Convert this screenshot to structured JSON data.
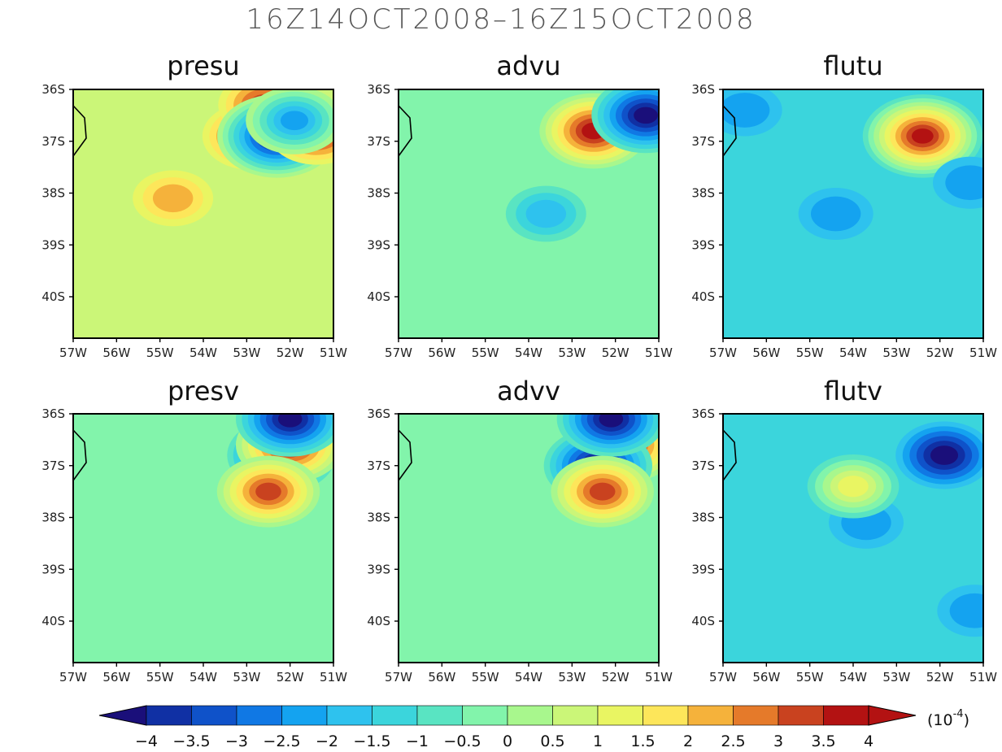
{
  "figure": {
    "title": "16Z14OCT2008–16Z15OCT2008"
  },
  "colorbar": {
    "tick_labels": [
      "-4",
      "-3.5",
      "-3",
      "-2.5",
      "-2",
      "-1.5",
      "-1",
      "-0.5",
      "0",
      "0.5",
      "1",
      "1.5",
      "2",
      "2.5",
      "3",
      "3.5",
      "4"
    ],
    "units": "(10^-4)",
    "units_base": "(10",
    "units_exp": "-4",
    "units_close": ")",
    "colors": [
      "#1a0f7a",
      "#1030a4",
      "#0f52c9",
      "#1078e4",
      "#14a3f0",
      "#2ec2ee",
      "#3bd5dc",
      "#59e4c2",
      "#82f4ab",
      "#a8f78d",
      "#cbf678",
      "#e9f562",
      "#fde65a",
      "#f5b23b",
      "#e57a2a",
      "#c9421f",
      "#b31212"
    ],
    "scale": "x 10^-4"
  },
  "chart_data": [
    {
      "type": "heatmap",
      "title": "presu",
      "x_tick_labels": [
        "57W",
        "56W",
        "55W",
        "54W",
        "53W",
        "52W",
        "51W"
      ],
      "y_tick_labels": [
        "36S",
        "37S",
        "38S",
        "39S",
        "40S"
      ],
      "xlim": [
        -57,
        -51
      ],
      "ylim": [
        -40.8,
        -36
      ],
      "features": [
        {
          "lon": -52.9,
          "lat": -36.9,
          "value": 4
        },
        {
          "lon": -52.6,
          "lat": -36.3,
          "value": 3.5
        },
        {
          "lon": -52.3,
          "lat": -36.9,
          "value": -4
        },
        {
          "lon": -51.4,
          "lat": -36.8,
          "value": 4
        },
        {
          "lon": -51.9,
          "lat": -36.6,
          "value": -2
        },
        {
          "lon": -54.7,
          "lat": -38.1,
          "value": 2.5
        }
      ],
      "background": 1
    },
    {
      "type": "heatmap",
      "title": "advu",
      "x_tick_labels": [
        "57W",
        "56W",
        "55W",
        "54W",
        "53W",
        "52W",
        "51W"
      ],
      "y_tick_labels": [
        "36S",
        "37S",
        "38S",
        "39S",
        "40S"
      ],
      "xlim": [
        -57,
        -51
      ],
      "ylim": [
        -40.8,
        -36
      ],
      "features": [
        {
          "lon": -52.5,
          "lat": -36.8,
          "value": 4
        },
        {
          "lon": -51.3,
          "lat": -36.5,
          "value": -4
        },
        {
          "lon": -53.6,
          "lat": -38.4,
          "value": -1.5
        }
      ],
      "background": 0
    },
    {
      "type": "heatmap",
      "title": "flutu",
      "x_tick_labels": [
        "57W",
        "56W",
        "55W",
        "54W",
        "53W",
        "52W",
        "51W"
      ],
      "y_tick_labels": [
        "36S",
        "37S",
        "38S",
        "39S",
        "40S"
      ],
      "xlim": [
        -57,
        -51
      ],
      "ylim": [
        -40.8,
        -36
      ],
      "features": [
        {
          "lon": -52.4,
          "lat": -36.9,
          "value": 4
        },
        {
          "lon": -56.5,
          "lat": -36.4,
          "value": -2
        },
        {
          "lon": -51.3,
          "lat": -37.8,
          "value": -2
        },
        {
          "lon": -54.4,
          "lat": -38.4,
          "value": -2
        }
      ],
      "background": -1
    },
    {
      "type": "heatmap",
      "title": "presv",
      "x_tick_labels": [
        "57W",
        "56W",
        "55W",
        "54W",
        "53W",
        "52W",
        "51W"
      ],
      "y_tick_labels": [
        "36S",
        "37S",
        "38S",
        "39S",
        "40S"
      ],
      "xlim": [
        -57,
        -51
      ],
      "ylim": [
        -40.8,
        -36
      ],
      "features": [
        {
          "lon": -52.2,
          "lat": -36.8,
          "value": -4
        },
        {
          "lon": -52.0,
          "lat": -36.6,
          "value": 4
        },
        {
          "lon": -52.5,
          "lat": -37.5,
          "value": 3.5
        },
        {
          "lon": -52.0,
          "lat": -36.1,
          "value": -4
        }
      ],
      "background": 0
    },
    {
      "type": "heatmap",
      "title": "advv",
      "x_tick_labels": [
        "57W",
        "56W",
        "55W",
        "54W",
        "53W",
        "52W",
        "51W"
      ],
      "y_tick_labels": [
        "36S",
        "37S",
        "38S",
        "39S",
        "40S"
      ],
      "xlim": [
        -57,
        -51
      ],
      "ylim": [
        -40.8,
        -36
      ],
      "features": [
        {
          "lon": -51.8,
          "lat": -36.6,
          "value": 4
        },
        {
          "lon": -52.4,
          "lat": -37.0,
          "value": -4
        },
        {
          "lon": -52.1,
          "lat": -36.1,
          "value": -4
        },
        {
          "lon": -52.3,
          "lat": -37.5,
          "value": 3.5
        }
      ],
      "background": 0
    },
    {
      "type": "heatmap",
      "title": "flutv",
      "x_tick_labels": [
        "57W",
        "56W",
        "55W",
        "54W",
        "53W",
        "52W",
        "51W"
      ],
      "y_tick_labels": [
        "36S",
        "37S",
        "38S",
        "39S",
        "40S"
      ],
      "xlim": [
        -57,
        -51
      ],
      "ylim": [
        -40.8,
        -36
      ],
      "features": [
        {
          "lon": -51.9,
          "lat": -36.8,
          "value": -4
        },
        {
          "lon": -53.7,
          "lat": -38.1,
          "value": -2
        },
        {
          "lon": -51.2,
          "lat": -39.8,
          "value": -2
        },
        {
          "lon": -54.0,
          "lat": -37.4,
          "value": 1.5
        }
      ],
      "background": -1
    }
  ]
}
